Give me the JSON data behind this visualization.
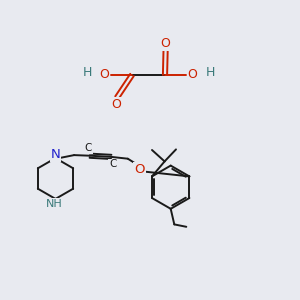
{
  "bg_color": "#e8eaf0",
  "bond_color": "#1a1a1a",
  "nitrogen_color": "#2222cc",
  "oxygen_color": "#cc2200",
  "nh_color": "#3a7a7a",
  "font_size": 8.0,
  "line_width": 1.4,
  "fig_w": 3.0,
  "fig_h": 3.0,
  "dpi": 100,
  "xlim": [
    0,
    10
  ],
  "ylim": [
    0,
    10
  ]
}
